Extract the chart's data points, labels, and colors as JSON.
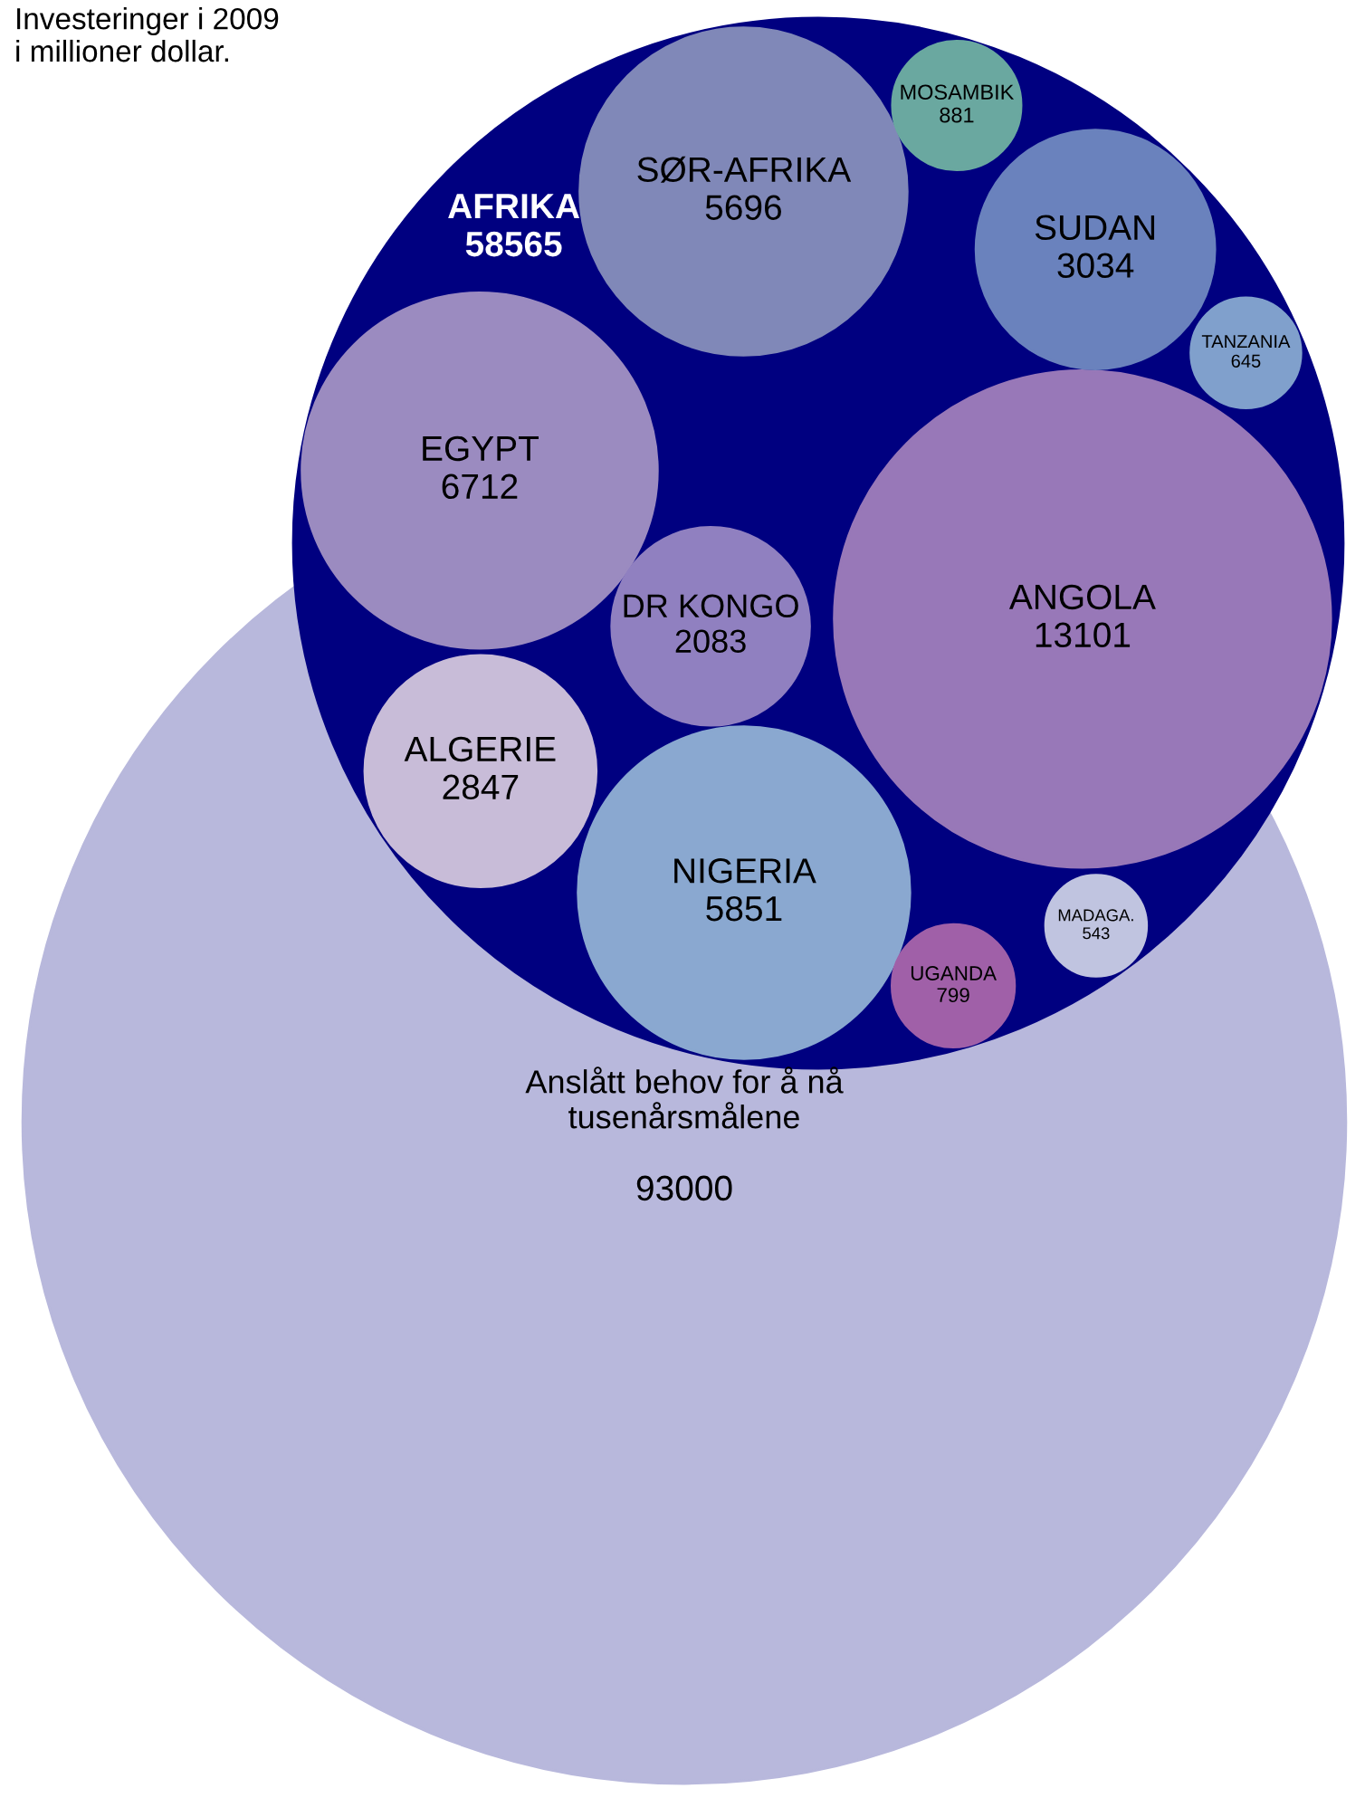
{
  "chart_data": {
    "type": "other",
    "title": "Investeringer i 2009\ni millioner dollar.",
    "categories": [
      "Anslått behov for å nå\ntusenårsmålene",
      "AFRIKA",
      "ANGOLA",
      "EGYPT",
      "NIGERIA",
      "SØR-AFRIKA",
      "SUDAN",
      "ALGERIE",
      "DR KONGO",
      "MOSAMBIK",
      "UGANDA",
      "TANZANIA",
      "MADAGA."
    ],
    "values": [
      93000,
      58565,
      13101,
      6712,
      5851,
      5696,
      3034,
      2847,
      2083,
      881,
      799,
      645,
      543
    ],
    "colors": [
      "#b8b8dc",
      "#000080",
      "#9878b8",
      "#9b8bc0",
      "#8aa8d0",
      "#8088b8",
      "#6a82bd",
      "#c8bcd8",
      "#9080c0",
      "#6aa8a0",
      "#a060a8",
      "#80a0cc",
      "#c0c4e0"
    ],
    "data_labels": true
  }
}
